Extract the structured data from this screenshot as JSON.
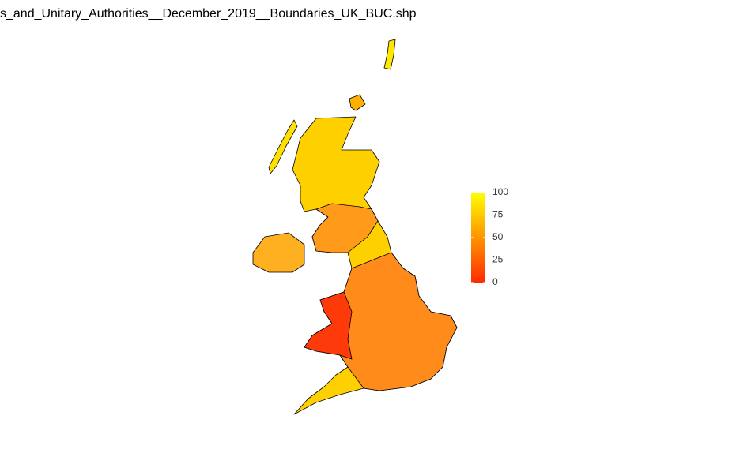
{
  "map": {
    "title": "s_and_Unitary_Authorities__December_2019__Boundaries_UK_BUC.shp",
    "legend": {
      "lim": [
        0,
        100
      ],
      "ticks": [
        0,
        25,
        50,
        75,
        100
      ],
      "colors": [
        "#ff2a00",
        "#ffff00"
      ]
    }
  }
}
